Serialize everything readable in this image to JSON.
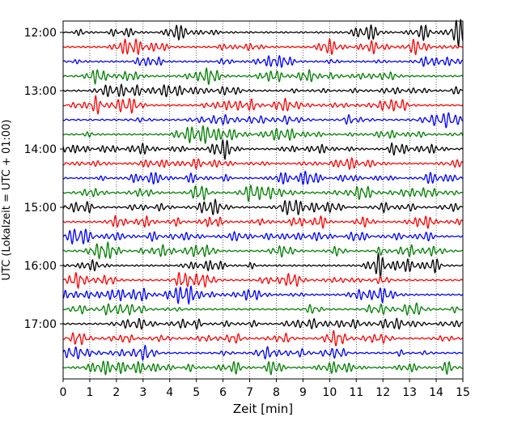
{
  "chart_data": {
    "type": "line",
    "subtype": "dayplot-seismogram",
    "title": "",
    "xlabel": "Zeit  [min]",
    "ylabel": "UTC (Lokalzeit = UTC + 01:00)",
    "xlim": [
      0,
      15
    ],
    "x_ticks": [
      "0",
      "1",
      "2",
      "3",
      "4",
      "5",
      "6",
      "7",
      "8",
      "9",
      "10",
      "11",
      "12",
      "13",
      "14",
      "15"
    ],
    "y_tick_labels": [
      "12:00",
      "13:00",
      "14:00",
      "15:00",
      "16:00",
      "17:00"
    ],
    "rows_per_hour": 4,
    "minutes_per_row": 15,
    "trace_start_times": [
      "12:00",
      "12:15",
      "12:30",
      "12:45",
      "13:00",
      "13:15",
      "13:30",
      "13:45",
      "14:00",
      "14:15",
      "14:30",
      "14:45",
      "15:00",
      "15:15",
      "15:30",
      "15:45",
      "16:00",
      "16:15",
      "16:30",
      "16:45",
      "17:00",
      "17:15",
      "17:30",
      "17:45"
    ],
    "trace_colors": [
      "#000000",
      "#ff0000",
      "#0000ff",
      "#008000"
    ],
    "x_grid": "dotted",
    "legend": "none"
  }
}
